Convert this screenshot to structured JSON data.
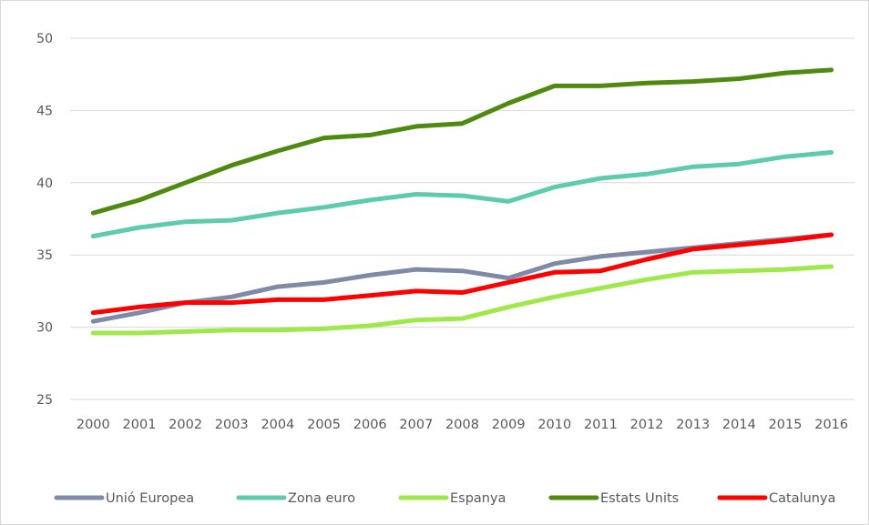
{
  "chart_data": {
    "type": "line",
    "title": "",
    "xlabel": "",
    "ylabel": "",
    "categories": [
      "2000",
      "2001",
      "2002",
      "2003",
      "2004",
      "2005",
      "2006",
      "2007",
      "2008",
      "2009",
      "2010",
      "2011",
      "2012",
      "2013",
      "2014",
      "2015",
      "2016"
    ],
    "ylim": [
      25,
      50
    ],
    "yticks": [
      "25",
      "30",
      "35",
      "40",
      "45",
      "50"
    ],
    "grid": true,
    "legend_position": "bottom",
    "series": [
      {
        "name": "Unió Europea",
        "color": "#7f8aa7",
        "values": [
          30.4,
          31.0,
          31.7,
          32.1,
          32.8,
          33.1,
          33.6,
          34.0,
          33.9,
          33.4,
          34.4,
          34.9,
          35.2,
          35.5,
          35.8,
          36.1,
          36.4
        ]
      },
      {
        "name": "Zona euro",
        "color": "#5ecbac",
        "values": [
          36.3,
          36.9,
          37.3,
          37.4,
          37.9,
          38.3,
          38.8,
          39.2,
          39.1,
          38.7,
          39.7,
          40.3,
          40.6,
          41.1,
          41.3,
          41.8,
          42.1
        ]
      },
      {
        "name": "Espanya",
        "color": "#9ee84a",
        "values": [
          29.6,
          29.6,
          29.7,
          29.8,
          29.8,
          29.9,
          30.1,
          30.5,
          30.6,
          31.4,
          32.1,
          32.7,
          33.3,
          33.8,
          33.9,
          34.0,
          34.2
        ]
      },
      {
        "name": "Estats Units",
        "color": "#4f8a10",
        "values": [
          37.9,
          38.8,
          40.0,
          41.2,
          42.2,
          43.1,
          43.3,
          43.9,
          44.1,
          45.5,
          46.7,
          46.7,
          46.9,
          47.0,
          47.2,
          47.6,
          47.8
        ]
      },
      {
        "name": "Catalunya",
        "color": "#ff0000",
        "values": [
          31.0,
          31.4,
          31.7,
          31.7,
          31.9,
          31.9,
          32.2,
          32.5,
          32.4,
          33.1,
          33.8,
          33.9,
          34.7,
          35.4,
          35.7,
          36.0,
          36.4
        ]
      }
    ]
  }
}
